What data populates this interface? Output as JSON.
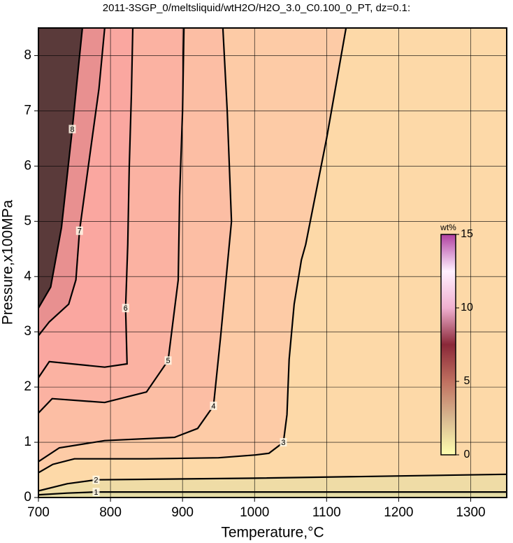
{
  "chart_data": {
    "type": "contour",
    "title": "2011-3SGP_0/meltsliquid/wtH2O/H2O_3.0_C0.100_0_PT, dz=0.1:",
    "x_label": "Temperature,°C",
    "y_label": "Pressure,x100MPa",
    "xlim": [
      700,
      1350
    ],
    "ylim": [
      0,
      8.5
    ],
    "xticks": [
      700,
      800,
      900,
      1000,
      1100,
      1200,
      1300
    ],
    "yticks": [
      0,
      1,
      2,
      3,
      4,
      5,
      6,
      7,
      8
    ],
    "grid": true,
    "background": "#e4dba4",
    "contours": [
      {
        "level": 1,
        "color": "#efdca6",
        "x": [
          700,
          740,
          780,
          1000,
          1350
        ],
        "y": [
          0.05,
          0.08,
          0.1,
          0.1,
          0.1
        ]
      },
      {
        "level": 2,
        "color": "#fdd9a8",
        "x": [
          700,
          740,
          780,
          1000,
          1350
        ],
        "y": [
          0.12,
          0.25,
          0.32,
          0.35,
          0.42
        ]
      },
      {
        "level": 3,
        "color": "#fdcba6",
        "x": [
          700,
          720,
          750,
          850,
          950,
          1001,
          1020,
          1040,
          1045,
          1048,
          1055,
          1065,
          1071,
          1100,
          1127
        ],
        "y": [
          0.45,
          0.6,
          0.7,
          0.7,
          0.72,
          0.77,
          0.8,
          1.0,
          1.5,
          2.5,
          3.5,
          4.3,
          4.58,
          6.5,
          8.5
        ]
      },
      {
        "level": 4,
        "color": "#fcbea4",
        "x": [
          700,
          729,
          792,
          889,
          921,
          943,
          953,
          968,
          962,
          956
        ],
        "y": [
          0.65,
          0.9,
          1.03,
          1.09,
          1.25,
          1.66,
          2.93,
          5.0,
          7.0,
          8.5
        ]
      },
      {
        "level": 5,
        "color": "#fbb2a2",
        "x": [
          700,
          719,
          792,
          850,
          880,
          894,
          896,
          900,
          902
        ],
        "y": [
          1.53,
          1.79,
          1.72,
          1.91,
          2.48,
          3.94,
          5.46,
          7.0,
          8.5
        ]
      },
      {
        "level": 6,
        "color": "#faa7a0",
        "x": [
          700,
          715,
          792,
          823,
          821,
          824,
          826,
          829,
          831
        ],
        "y": [
          2.17,
          2.46,
          2.36,
          2.42,
          3.43,
          4.58,
          5.97,
          7.3,
          8.5
        ]
      },
      {
        "level": 7,
        "color": "#e89090",
        "x": [
          700,
          715,
          742,
          752,
          757,
          773,
          784,
          792
        ],
        "y": [
          2.93,
          3.18,
          3.5,
          3.94,
          4.83,
          6.35,
          7.4,
          8.5
        ]
      },
      {
        "level": 8,
        "color": "#5a3a3a",
        "x": [
          700,
          717,
          732,
          747,
          754,
          761
        ],
        "y": [
          3.43,
          3.81,
          4.89,
          6.67,
          7.6,
          8.5
        ]
      }
    ],
    "colorbar": {
      "label": "wt%",
      "lim": [
        0,
        15
      ],
      "ticks": [
        0,
        5,
        10,
        15
      ],
      "colors": [
        "#ffffb0",
        "#d8b890",
        "#c07060",
        "#8a2838",
        "#f0b0d0",
        "#fff0ff",
        "#b040a0"
      ]
    }
  }
}
